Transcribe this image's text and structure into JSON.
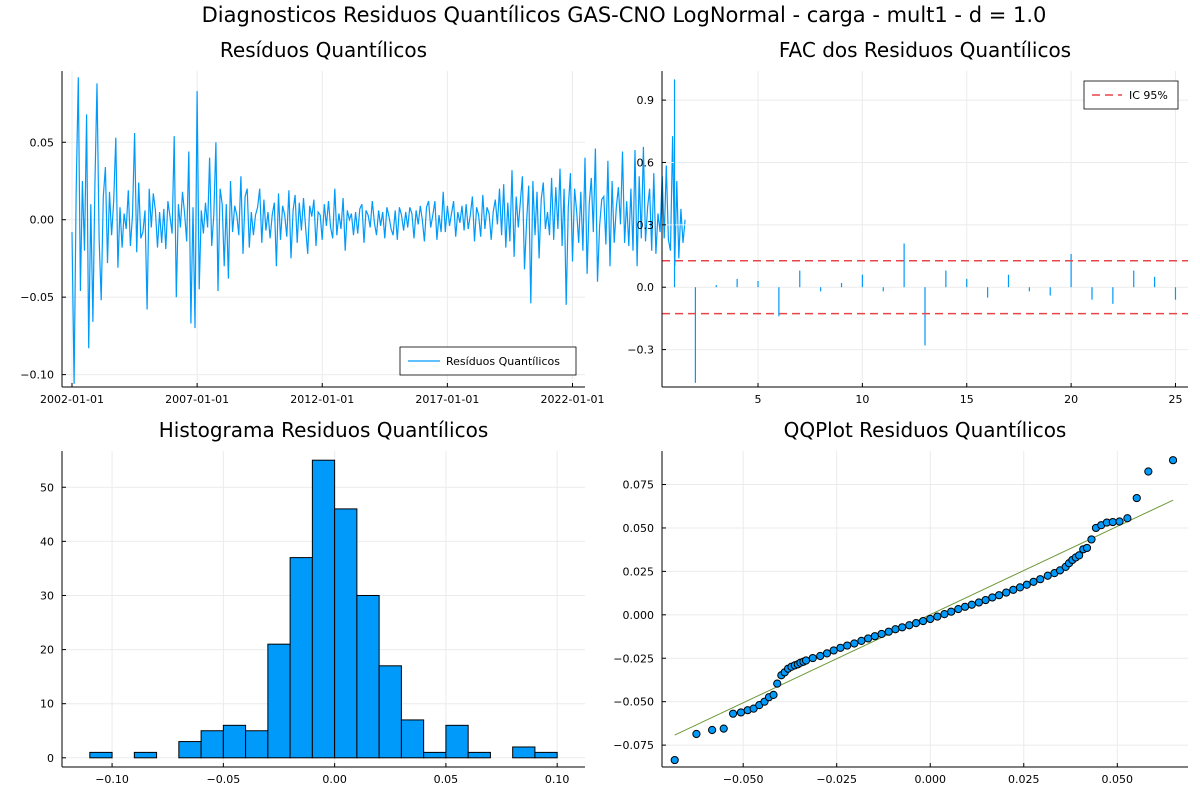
{
  "figure": {
    "suptitle": "Diagnosticos Residuos  Quantílicos GAS-CNO LogNormal - carga - mult1 - d = 1.0"
  },
  "colors": {
    "series": "#009AFA",
    "ci": "#E8454A",
    "ref_line": "#6E9A3A",
    "grid": "#EBEBEB",
    "axis": "#000000"
  },
  "chart_data": [
    {
      "type": "line",
      "title": "Resíduos  Quantílicos",
      "xlabel": "",
      "ylabel": "",
      "xlim": [
        2001.6,
        2022.5
      ],
      "ylim": [
        -0.108,
        0.096
      ],
      "xticks": [
        {
          "v": 2002,
          "label": "2002-01-01"
        },
        {
          "v": 2007,
          "label": "2007-01-01"
        },
        {
          "v": 2012,
          "label": "2012-01-01"
        },
        {
          "v": 2017,
          "label": "2017-01-01"
        },
        {
          "v": 2022,
          "label": "2022-01-01"
        }
      ],
      "yticks": [
        {
          "v": 0.05,
          "label": "0.05"
        },
        {
          "v": 0.0,
          "label": "0.00"
        },
        {
          "v": -0.05,
          "label": "−0.05"
        },
        {
          "v": -0.1,
          "label": "−0.10"
        }
      ],
      "legend": {
        "position": "bottom-right",
        "entries": [
          {
            "name": "Resíduos Quantílicos",
            "color": "#009AFA"
          }
        ]
      },
      "grid": true,
      "series": [
        {
          "name": "Resíduos Quantílicos",
          "x_start": 2002.0,
          "x_step": 0.0833333,
          "values": [
            -0.008,
            -0.106,
            0.02,
            0.092,
            -0.046,
            0.025,
            -0.02,
            0.068,
            -0.083,
            0.01,
            -0.066,
            0.022,
            0.088,
            -0.012,
            -0.052,
            0.015,
            0.034,
            -0.028,
            0.018,
            -0.01,
            0.012,
            0.053,
            -0.031,
            0.008,
            -0.018,
            0.004,
            -0.006,
            0.019,
            -0.017,
            0.003,
            0.056,
            -0.021,
            0.024,
            -0.012,
            -0.008,
            0.006,
            -0.058,
            0.02,
            -0.005,
            0.017,
            0.006,
            -0.018,
            0.005,
            -0.015,
            0.007,
            -0.019,
            0.012,
            0.002,
            -0.009,
            0.054,
            -0.05,
            0.01,
            -0.005,
            0.018,
            0.004,
            -0.014,
            0.044,
            -0.067,
            0.008,
            -0.07,
            0.083,
            -0.045,
            0.006,
            -0.009,
            0.011,
            -0.005,
            0.04,
            -0.017,
            0.003,
            0.05,
            -0.046,
            0.02,
            0.01,
            -0.03,
            0.01,
            -0.038,
            0.025,
            -0.008,
            0.009,
            0.003,
            -0.01,
            0.028,
            -0.022,
            0.015,
            0.02,
            -0.018,
            0.005,
            -0.01,
            0.003,
            0.008,
            0.02,
            -0.015,
            0.013,
            -0.007,
            0.005,
            -0.012,
            0.003,
            0.011,
            -0.03,
            0.017,
            -0.013,
            0.009,
            0.003,
            -0.011,
            0.019,
            -0.025,
            0.006,
            0.016,
            -0.015,
            0.011,
            -0.007,
            0.014,
            -0.005,
            -0.022,
            0.009,
            0.002,
            0.013,
            -0.017,
            0.005,
            0.003,
            -0.013,
            0.01,
            -0.004,
            0.012,
            -0.005,
            -0.012,
            0.02,
            -0.01,
            0.004,
            -0.006,
            0.014,
            -0.02,
            0.006,
            0.0,
            0.004,
            -0.01,
            0.005,
            -0.009,
            0.007,
            0.01,
            -0.015,
            0.006,
            0.003,
            -0.005,
            0.012,
            -0.002,
            -0.01,
            0.006,
            -0.004,
            0.005,
            -0.012,
            0.008,
            0.002,
            -0.006,
            -0.01,
            0.006,
            -0.013,
            0.008,
            0.003,
            -0.007,
            0.005,
            -0.005,
            0.008,
            0.004,
            -0.012,
            0.006,
            -0.003,
            0.009,
            0.0,
            -0.014,
            0.008,
            0.012,
            -0.005,
            0.003,
            0.012,
            -0.013,
            0.003,
            -0.008,
            0.018,
            -0.008,
            0.009,
            -0.004,
            0.004,
            0.012,
            -0.011,
            0.005,
            -0.002,
            0.009,
            -0.007,
            0.01,
            -0.006,
            0.003,
            0.015,
            -0.014,
            0.008,
            0.003,
            -0.011,
            0.016,
            -0.006,
            0.008,
            0.004,
            -0.013,
            0.005,
            0.013,
            -0.003,
            0.02,
            -0.01,
            0.023,
            -0.018,
            0.011,
            -0.014,
            0.032,
            -0.024,
            0.015,
            -0.005,
            0.012,
            0.028,
            -0.032,
            -0.001,
            0.022,
            -0.054,
            0.025,
            -0.01,
            0.018,
            -0.025,
            0.013,
            0.024,
            -0.006,
            0.005,
            -0.01,
            0.027,
            -0.013,
            0.021,
            -0.006,
            0.033,
            -0.017,
            0.02,
            -0.055,
            0.008,
            0.03,
            -0.027,
            0.02,
            0.005,
            -0.015,
            0.018,
            -0.02,
            0.04,
            -0.035,
            0.01,
            0.027,
            -0.008,
            0.046,
            -0.04,
            -0.004,
            0.013,
            0.015,
            -0.016,
            0.038,
            -0.03,
            0.025,
            -0.015,
            0.008,
            0.021,
            -0.003,
            0.044,
            -0.015,
            0.012,
            -0.017,
            0.02,
            -0.02,
            0.045,
            -0.03,
            0.028,
            -0.012,
            0.047,
            -0.014,
            0.008,
            0.02,
            -0.02,
            0.03,
            -0.022,
            0.004,
            -0.008,
            0.028,
            -0.012,
            0.035,
            -0.013,
            -0.02,
            0.054,
            -0.03,
            0.025,
            -0.025,
            0.007,
            -0.015,
            0.0
          ]
        }
      ]
    },
    {
      "type": "bar",
      "title": "FAC dos Residuos Quantílicos",
      "xlabel": "",
      "ylabel": "",
      "xlim": [
        0.4,
        25.6
      ],
      "ylim": [
        -0.48,
        1.04
      ],
      "xticks": [
        {
          "v": 5,
          "label": "5"
        },
        {
          "v": 10,
          "label": "10"
        },
        {
          "v": 15,
          "label": "15"
        },
        {
          "v": 20,
          "label": "20"
        },
        {
          "v": 25,
          "label": "25"
        }
      ],
      "yticks": [
        {
          "v": 0.9,
          "label": "0.9"
        },
        {
          "v": 0.6,
          "label": "0.6"
        },
        {
          "v": 0.3,
          "label": "0.3"
        },
        {
          "v": 0.0,
          "label": "0.0"
        },
        {
          "v": -0.3,
          "label": "−0.3"
        }
      ],
      "legend": {
        "position": "top-right",
        "entries": [
          {
            "name": "IC 95%",
            "color": "#E8454A",
            "style": "dashed"
          }
        ]
      },
      "grid": true,
      "lags": [
        1,
        2,
        3,
        4,
        5,
        6,
        7,
        8,
        9,
        10,
        11,
        12,
        13,
        14,
        15,
        16,
        17,
        18,
        19,
        20,
        21,
        22,
        23,
        24,
        25
      ],
      "values": [
        1.0,
        -0.46,
        0.01,
        0.04,
        0.03,
        -0.14,
        0.08,
        -0.02,
        0.02,
        0.06,
        -0.02,
        0.21,
        -0.28,
        0.08,
        0.04,
        -0.05,
        0.06,
        -0.02,
        -0.04,
        0.16,
        -0.06,
        -0.08,
        0.08,
        0.05,
        -0.06
      ],
      "ci": [
        0.127,
        -0.127
      ]
    },
    {
      "type": "bar",
      "title": "Histograma Residuos Quantílicos",
      "xlabel": "",
      "ylabel": "",
      "xlim": [
        -0.1225,
        0.1125
      ],
      "ylim": [
        -1.7,
        56.7
      ],
      "xticks": [
        {
          "v": -0.1,
          "label": "−0.10"
        },
        {
          "v": -0.05,
          "label": "−0.05"
        },
        {
          "v": 0.0,
          "label": "0.00"
        },
        {
          "v": 0.05,
          "label": "0.05"
        },
        {
          "v": 0.1,
          "label": "0.10"
        }
      ],
      "yticks": [
        {
          "v": 0,
          "label": "0"
        },
        {
          "v": 10,
          "label": "10"
        },
        {
          "v": 20,
          "label": "20"
        },
        {
          "v": 30,
          "label": "30"
        },
        {
          "v": 40,
          "label": "40"
        },
        {
          "v": 50,
          "label": "50"
        }
      ],
      "grid": true,
      "bin_width": 0.01,
      "bin_edges_start": -0.11,
      "counts": [
        1,
        0,
        1,
        0,
        3,
        5,
        6,
        5,
        21,
        37,
        55,
        46,
        30,
        17,
        7,
        1,
        6,
        1,
        0,
        2,
        1
      ]
    },
    {
      "type": "scatter",
      "title": "QQPlot Residuos Quantílicos",
      "xlabel": "",
      "ylabel": "",
      "xlim": [
        -0.0717,
        0.0689
      ],
      "ylim": [
        -0.0876,
        0.0943
      ],
      "xticks": [
        {
          "v": -0.05,
          "label": "−0.050"
        },
        {
          "v": -0.025,
          "label": "−0.025"
        },
        {
          "v": 0.0,
          "label": "0.000"
        },
        {
          "v": 0.025,
          "label": "0.025"
        },
        {
          "v": 0.05,
          "label": "0.050"
        }
      ],
      "yticks": [
        {
          "v": 0.075,
          "label": "0.075"
        },
        {
          "v": 0.05,
          "label": "0.050"
        },
        {
          "v": 0.025,
          "label": "0.025"
        },
        {
          "v": 0.0,
          "label": "0.000"
        },
        {
          "v": -0.025,
          "label": "−0.025"
        },
        {
          "v": -0.05,
          "label": "−0.050"
        },
        {
          "v": -0.075,
          "label": "−0.075"
        }
      ],
      "grid": true,
      "points": [
        [
          -0.0683,
          -0.0836
        ],
        [
          -0.0625,
          -0.0686
        ],
        [
          -0.0583,
          -0.0663
        ],
        [
          -0.0552,
          -0.0655
        ],
        [
          -0.0527,
          -0.0569
        ],
        [
          -0.0506,
          -0.0562
        ],
        [
          -0.0488,
          -0.0549
        ],
        [
          -0.0472,
          -0.054
        ],
        [
          -0.0457,
          -0.052
        ],
        [
          -0.0443,
          -0.05
        ],
        [
          -0.0431,
          -0.0474
        ],
        [
          -0.0419,
          -0.0461
        ],
        [
          -0.0409,
          -0.0396
        ],
        [
          -0.0398,
          -0.0348
        ],
        [
          -0.0389,
          -0.0331
        ],
        [
          -0.038,
          -0.031
        ],
        [
          -0.0371,
          -0.0299
        ],
        [
          -0.0362,
          -0.0291
        ],
        [
          -0.0354,
          -0.0285
        ],
        [
          -0.0347,
          -0.0276
        ],
        [
          -0.0339,
          -0.027
        ],
        [
          -0.0332,
          -0.0263
        ],
        [
          -0.0314,
          -0.0249
        ],
        [
          -0.0294,
          -0.0237
        ],
        [
          -0.0276,
          -0.0222
        ],
        [
          -0.0258,
          -0.0205
        ],
        [
          -0.024,
          -0.019
        ],
        [
          -0.0222,
          -0.0177
        ],
        [
          -0.0203,
          -0.0165
        ],
        [
          -0.0184,
          -0.015
        ],
        [
          -0.0166,
          -0.0136
        ],
        [
          -0.0148,
          -0.0123
        ],
        [
          -0.013,
          -0.011
        ],
        [
          -0.0111,
          -0.0097
        ],
        [
          -0.0093,
          -0.0083
        ],
        [
          -0.0075,
          -0.0072
        ],
        [
          -0.0056,
          -0.006
        ],
        [
          -0.0038,
          -0.0048
        ],
        [
          -0.0019,
          -0.0036
        ],
        [
          0.0,
          -0.0024
        ],
        [
          0.0019,
          -0.001
        ],
        [
          0.0038,
          0.0004
        ],
        [
          0.0056,
          0.0018
        ],
        [
          0.0075,
          0.0033
        ],
        [
          0.0093,
          0.0046
        ],
        [
          0.0111,
          0.0058
        ],
        [
          0.013,
          0.0071
        ],
        [
          0.0148,
          0.0085
        ],
        [
          0.0166,
          0.01
        ],
        [
          0.0184,
          0.0113
        ],
        [
          0.0203,
          0.0128
        ],
        [
          0.0222,
          0.0144
        ],
        [
          0.024,
          0.0158
        ],
        [
          0.0258,
          0.0173
        ],
        [
          0.0276,
          0.019
        ],
        [
          0.0294,
          0.0205
        ],
        [
          0.0314,
          0.0225
        ],
        [
          0.0332,
          0.024
        ],
        [
          0.0347,
          0.0256
        ],
        [
          0.0362,
          0.0276
        ],
        [
          0.0371,
          0.0297
        ],
        [
          0.038,
          0.0316
        ],
        [
          0.0389,
          0.033
        ],
        [
          0.0398,
          0.0342
        ],
        [
          0.0409,
          0.0377
        ],
        [
          0.0419,
          0.0385
        ],
        [
          0.0431,
          0.0434
        ],
        [
          0.0443,
          0.05
        ],
        [
          0.0457,
          0.0516
        ],
        [
          0.0472,
          0.0531
        ],
        [
          0.0488,
          0.0534
        ],
        [
          0.0506,
          0.0537
        ],
        [
          0.0527,
          0.0556
        ],
        [
          0.0552,
          0.0672
        ],
        [
          0.0583,
          0.0825
        ],
        [
          0.0649,
          0.089
        ]
      ],
      "ref_line": [
        [
          -0.0683,
          -0.0692
        ],
        [
          0.0649,
          0.066
        ]
      ]
    }
  ]
}
